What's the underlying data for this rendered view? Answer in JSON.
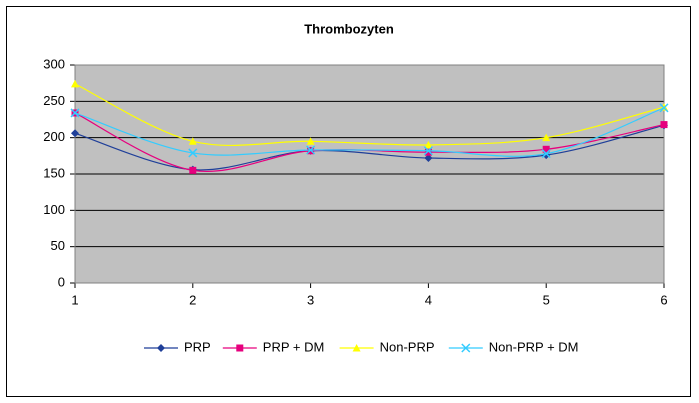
{
  "chart_data": {
    "type": "line",
    "title": "Thrombozyten",
    "x": [
      1,
      2,
      3,
      4,
      5,
      6
    ],
    "xlim": [
      1,
      6
    ],
    "xticks": [
      1,
      2,
      3,
      4,
      5,
      6
    ],
    "ylim": [
      0,
      300
    ],
    "yticks": [
      0,
      50,
      100,
      150,
      200,
      250,
      300
    ],
    "grid": true,
    "smooth": true,
    "legend": "bottom",
    "series": [
      {
        "name": "PRP",
        "color": "#1f3f99",
        "marker": "diamond",
        "values": [
          206,
          156,
          182,
          172,
          176,
          217
        ]
      },
      {
        "name": "PRP + DM",
        "color": "#e6007e",
        "marker": "square",
        "values": [
          234,
          155,
          182,
          180,
          184,
          218
        ]
      },
      {
        "name": "Non-PRP",
        "color": "#ffff00",
        "marker": "triangle",
        "values": [
          274,
          195,
          195,
          190,
          200,
          242
        ]
      },
      {
        "name": "Non-PRP + DM",
        "color": "#33ccff",
        "marker": "cross",
        "values": [
          234,
          179,
          183,
          182,
          178,
          241
        ]
      }
    ]
  }
}
